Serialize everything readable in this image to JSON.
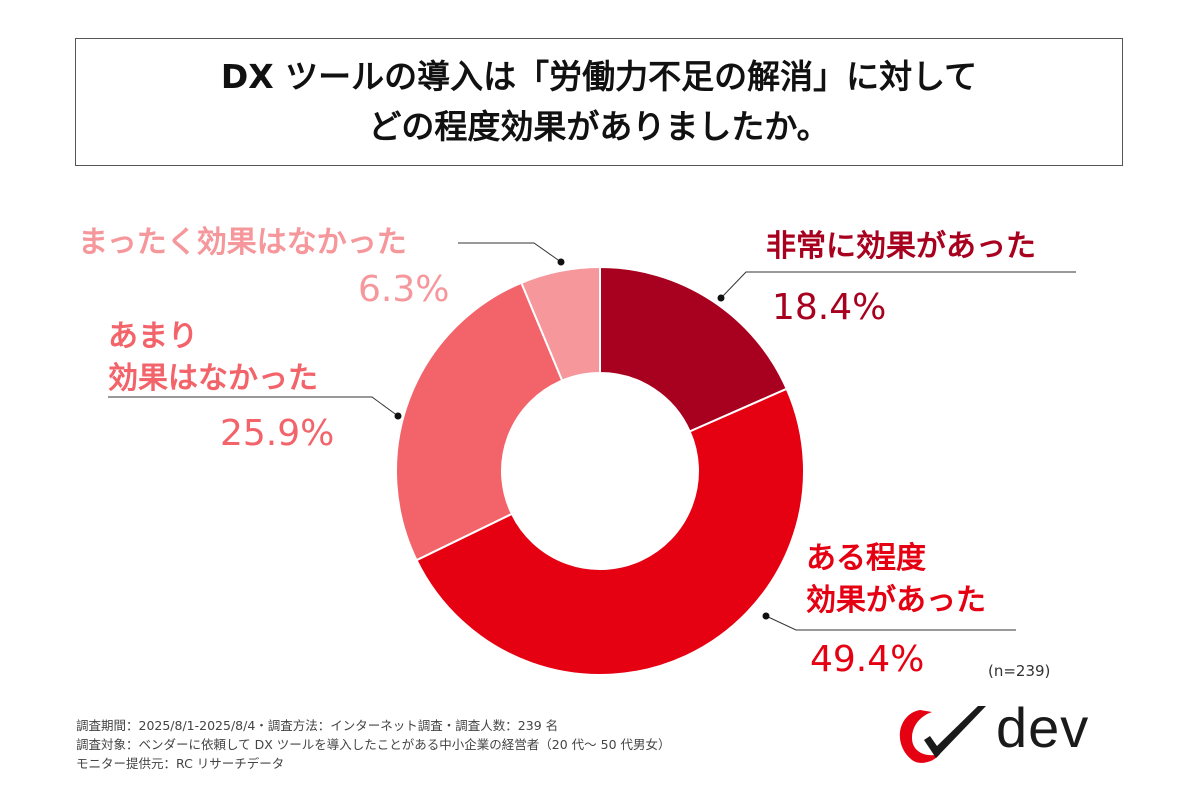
{
  "title": {
    "line1": "DX ツールの導入は「労働力不足の解消」に対して",
    "line2": "どの程度効果がありましたか。"
  },
  "chart_data": {
    "type": "pie",
    "style": "donut",
    "slices": [
      {
        "label_lines": [
          "非常に効果があった"
        ],
        "value": 18.4,
        "value_text": "18.4%",
        "color": "#A8001F"
      },
      {
        "label_lines": [
          "ある程度",
          "効果があった"
        ],
        "value": 49.4,
        "value_text": "49.4%",
        "color": "#E50012"
      },
      {
        "label_lines": [
          "あまり",
          "効果はなかった"
        ],
        "value": 25.9,
        "value_text": "25.9%",
        "color": "#F2636A"
      },
      {
        "label_lines": [
          "まったく効果はなかった"
        ],
        "value": 6.3,
        "value_text": "6.3%",
        "color": "#F5979B"
      }
    ],
    "start": "12 o'clock, clockwise",
    "legend": "none"
  },
  "sample_note": "(n=239)",
  "footnotes": [
    "調査期間：2025/8/1-2025/8/4・調査方法：インターネット調査・調査人数：239 名",
    "調査対象：ベンダーに依頼して DX ツールを導入したことがある中小企業の経営者（20 代～ 50 代男女）",
    "モニター提供元：RC リサーチデータ"
  ],
  "logo": {
    "text": "dev",
    "icon": "checkmark-swoosh-icon",
    "accent_color": "#E50012"
  }
}
